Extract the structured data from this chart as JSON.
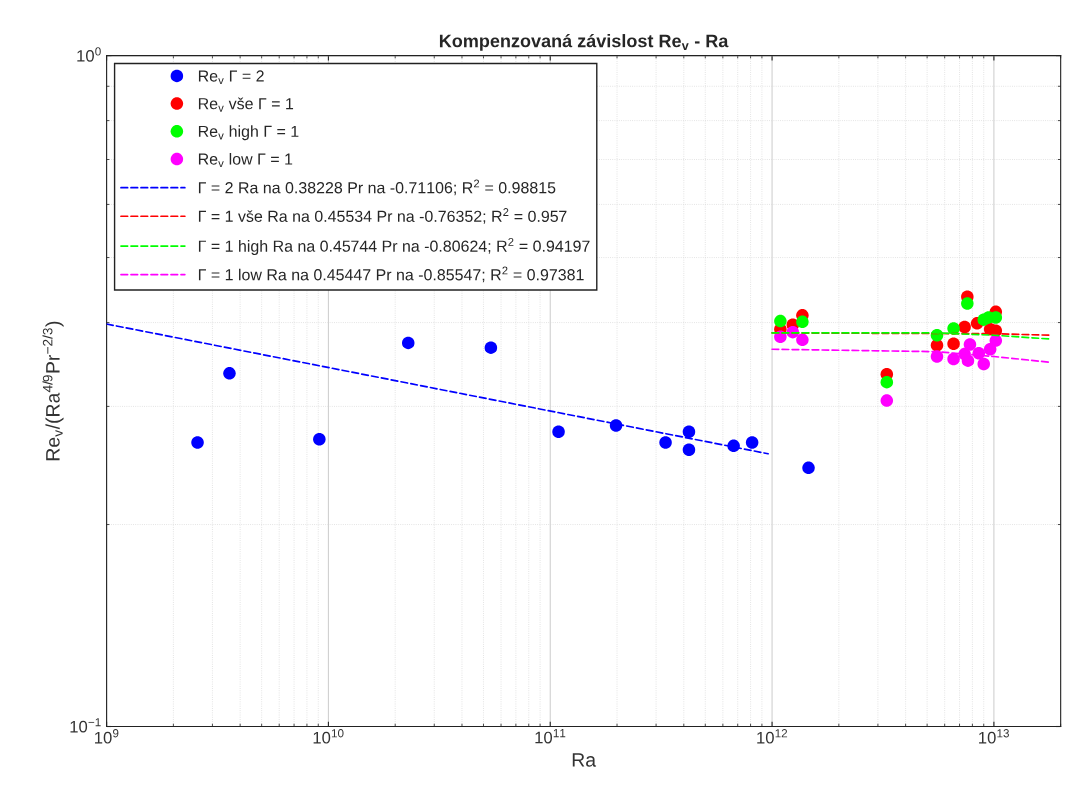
{
  "chart_data": {
    "type": "scatter",
    "title": "Kompenzovaná závislost Re$_{v}$ - Ra",
    "xlabel": "Ra",
    "ylabel": "Re$_{v}$/(Ra$^{4/9}$Pr$^{−2/3}$)",
    "log": "xy",
    "grid": true,
    "legend": "top left",
    "marker": "circle",
    "xlim": [
      1000000000.0,
      20000000000000.0
    ],
    "ylim": [
      0.1,
      1
    ],
    "xticks": [
      {
        "value": 1000000000.0,
        "label": "10$^{9}$"
      },
      {
        "value": 10000000000.0,
        "label": "10$^{10}$"
      },
      {
        "value": 100000000000.0,
        "label": "10$^{11}$"
      },
      {
        "value": 1000000000000.0,
        "label": "10$^{12}$"
      },
      {
        "value": 10000000000000.0,
        "label": "10$^{13}$"
      }
    ],
    "yticks": [
      {
        "value": 0.1,
        "label": "10$^{−1}$"
      },
      {
        "value": 1,
        "label": "10$^{0}$"
      }
    ],
    "series": [
      {
        "name": "Re$_{v}$ Γ = 2",
        "color": "#0000ff",
        "x": [
          2570000000.0,
          3580000000.0,
          9100000000.0,
          22900000000.0,
          54000000000.0,
          109000000000.0,
          198000000000.0,
          331000000000.0,
          422000000000.0,
          422000000000.0,
          671000000000.0,
          813000000000.0,
          1460000000000.0
        ],
        "values": [
          0.265,
          0.336,
          0.268,
          0.373,
          0.367,
          0.275,
          0.281,
          0.265,
          0.275,
          0.2585,
          0.262,
          0.265,
          0.243
        ]
      },
      {
        "name": "Re$_{v}$ vše Γ = 1",
        "color": "#ff0000",
        "x": [
          1090000000000.0,
          1240000000000.0,
          1370000000000.0,
          3290000000000.0,
          5540000000000.0,
          6580000000000.0,
          7380000000000.0,
          7590000000000.0,
          8400000000000.0,
          9620000000000.0,
          10200000000000.0,
          10200000000000.0
        ],
        "values": [
          0.391,
          0.397,
          0.41,
          0.335,
          0.37,
          0.372,
          0.394,
          0.437,
          0.399,
          0.391,
          0.415,
          0.389
        ]
      },
      {
        "name": "Re$_{v}$ high Γ = 1",
        "color": "#00ff00",
        "x": [
          1090000000000.0,
          1370000000000.0,
          3290000000000.0,
          5540000000000.0,
          6580000000000.0,
          7590000000000.0,
          9000000000000.0,
          9460000000000.0,
          10200000000000.0
        ],
        "values": [
          0.402,
          0.401,
          0.326,
          0.383,
          0.392,
          0.427,
          0.404,
          0.407,
          0.407
        ]
      },
      {
        "name": "Re$_{v}$ low Γ = 1",
        "color": "#ff00ff",
        "x": [
          1090000000000.0,
          1240000000000.0,
          1370000000000.0,
          3290000000000.0,
          5540000000000.0,
          6580000000000.0,
          7380000000000.0,
          7640000000000.0,
          7800000000000.0,
          8550000000000.0,
          9000000000000.0,
          9620000000000.0,
          10200000000000.0
        ],
        "values": [
          0.381,
          0.387,
          0.377,
          0.306,
          0.356,
          0.353,
          0.359,
          0.351,
          0.371,
          0.36,
          0.347,
          0.365,
          0.376
        ]
      },
      {
        "name": "Γ = 2 Ra na 0.38228 Pr na -0.71106; R$^{2}$ = 0.98815",
        "type": "line",
        "line_style": "dashed",
        "marker": "none",
        "color": "#0000ff",
        "x": [
          1000000000.0,
          960000000000.0
        ],
        "values": [
          0.398,
          0.255
        ]
      },
      {
        "name": "Γ = 1 vše Ra na 0.45534 Pr na -0.76352; R$^{2}$ = 0.957",
        "type": "line",
        "line_style": "dashed",
        "marker": "none",
        "color": "#ff0000",
        "x": [
          1000000000000.0,
          10000000000000.0,
          18000000000000.0
        ],
        "values": [
          0.386,
          0.385,
          0.383
        ]
      },
      {
        "name": "Γ = 1 high Ra na 0.45744 Pr na -0.80624; R$^{2}$ = 0.94197",
        "type": "line",
        "line_style": "dashed",
        "marker": "none",
        "color": "#00ff00",
        "x": [
          1000000000000.0,
          5500000000000.0,
          10000000000000.0,
          18000000000000.0
        ],
        "values": [
          0.386,
          0.386,
          0.383,
          0.378
        ]
      },
      {
        "name": "Γ = 1 low Ra na 0.45447 Pr na -0.85547; R$^{2}$ = 0.97381",
        "type": "line",
        "line_style": "dashed",
        "marker": "none",
        "color": "#ff00ff",
        "x": [
          1000000000000.0,
          5500000000000.0,
          10000000000000.0,
          18000000000000.0
        ],
        "values": [
          0.365,
          0.362,
          0.356,
          0.349
        ]
      }
    ]
  }
}
